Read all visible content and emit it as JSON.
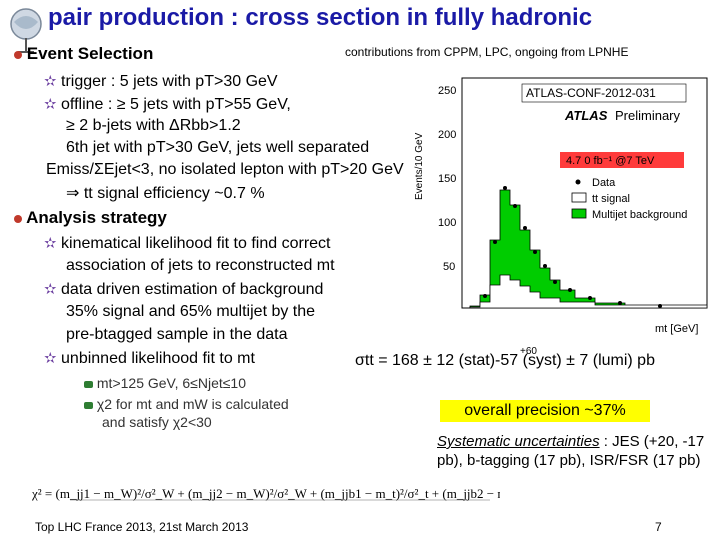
{
  "title": "pair production : cross section in fully hadronic",
  "contributions": "contributions from CPPM, LPC, ongoing from LPNHE",
  "event_selection": {
    "heading": "Event Selection",
    "trigger": "trigger : 5 jets with pT>30 GeV",
    "offline_1": "offline : ≥ 5 jets with pT>55 GeV,",
    "offline_2": "≥ 2 b-jets with ΔRbb>1.2",
    "offline_3": "6th jet with pT>30 GeV, jets well separated",
    "emiss": "Emiss/ΣEjet<3, no isolated lepton with pT>20 GeV",
    "efficiency": "⇒ tt signal efficiency ~0.7 %"
  },
  "analysis": {
    "heading": "Analysis strategy",
    "item1_a": "kinematical likelihood fit to find correct",
    "item1_b": "association of jets to reconstructed mt",
    "item2_a": "data driven estimation of background",
    "item2_b": "35% signal and 65% multijet by the",
    "item2_c": "pre-btagged sample in the data",
    "item3": "unbinned likelihood fit to mt",
    "sub1": "mt>125 GeV, 6≤Njet≤10",
    "sub2_a": "χ2 for mt and mW is calculated",
    "sub2_b": "and satisfy χ2<30"
  },
  "plot": {
    "conf_label": "ATLAS-CONF-2012-031",
    "atlas": "ATLAS",
    "preliminary": "Preliminary",
    "lumi": "4.7 0 fb⁻¹ @7 TeV",
    "ylabel": "Events/10 GeV",
    "xlabel": "mt [GeV]",
    "yticks": [
      "250",
      "200",
      "150",
      "100",
      "50"
    ],
    "legend": [
      "Data",
      "tt signal",
      "Multijet background"
    ],
    "signal_color": "#00cc00",
    "background_color": "#ffffff"
  },
  "result": {
    "text": "σtt = 168 ± 12 (stat)-57 (syst) ± 7 (lumi) pb",
    "sup": "+60"
  },
  "overall": "overall precision ~37%",
  "systematics": {
    "heading": "Systematic uncertainties",
    "body": ": JES (+20, -17 pb), b-tagging (17 pb), ISR/FSR (17 pb)"
  },
  "footer": "Top LHC France 2013, 21st March 2013",
  "page_number": "7"
}
